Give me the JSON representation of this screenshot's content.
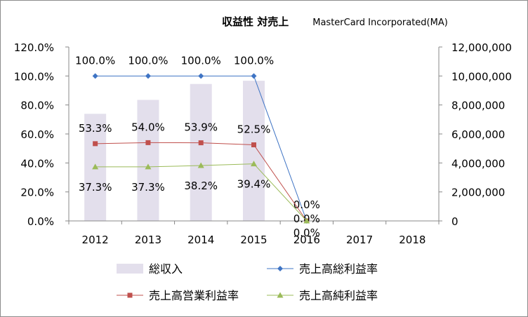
{
  "title": "収益性 対売上",
  "company": "MasterCard Incorporated(MA)",
  "chart_data": {
    "type": "bar+line",
    "categories": [
      "2012",
      "2013",
      "2014",
      "2015",
      "2016",
      "2017",
      "2018"
    ],
    "bar_series": {
      "name": "総収入",
      "axis": "right",
      "values": [
        7390000,
        8350000,
        9450000,
        9670000,
        null,
        null,
        null
      ],
      "color": "#e3dfec"
    },
    "line_series": [
      {
        "name": "売上高総利益率",
        "axis": "left",
        "color": "#3f74c4",
        "marker": "diamond",
        "values": [
          100.0,
          100.0,
          100.0,
          100.0,
          0.0,
          null,
          null
        ],
        "labels": [
          "100.0%",
          "100.0%",
          "100.0%",
          "100.0%",
          "0.0%",
          "",
          ""
        ]
      },
      {
        "name": "売上高営業利益率",
        "axis": "left",
        "color": "#c0504d",
        "marker": "square",
        "values": [
          53.3,
          54.0,
          53.9,
          52.5,
          0.0,
          null,
          null
        ],
        "labels": [
          "53.3%",
          "54.0%",
          "53.9%",
          "52.5%",
          "0.0%",
          "",
          ""
        ]
      },
      {
        "name": "売上高純利益率",
        "axis": "left",
        "color": "#9bbb59",
        "marker": "triangle",
        "values": [
          37.3,
          37.3,
          38.2,
          39.4,
          0.0,
          null,
          null
        ],
        "labels": [
          "37.3%",
          "37.3%",
          "38.2%",
          "39.4%",
          "0.0%",
          "",
          ""
        ]
      }
    ],
    "left_axis": {
      "min": 0,
      "max": 120,
      "step": 20,
      "tick_labels": [
        "0.0%",
        "20.0%",
        "40.0%",
        "60.0%",
        "80.0%",
        "100.0%",
        "120.0%"
      ]
    },
    "right_axis": {
      "min": 0,
      "max": 12000000,
      "step": 2000000,
      "tick_labels": [
        "0",
        "2,000,000",
        "4,000,000",
        "6,000,000",
        "8,000,000",
        "10,000,000",
        "12,000,000"
      ]
    },
    "grid": false,
    "legend_position": "bottom"
  }
}
